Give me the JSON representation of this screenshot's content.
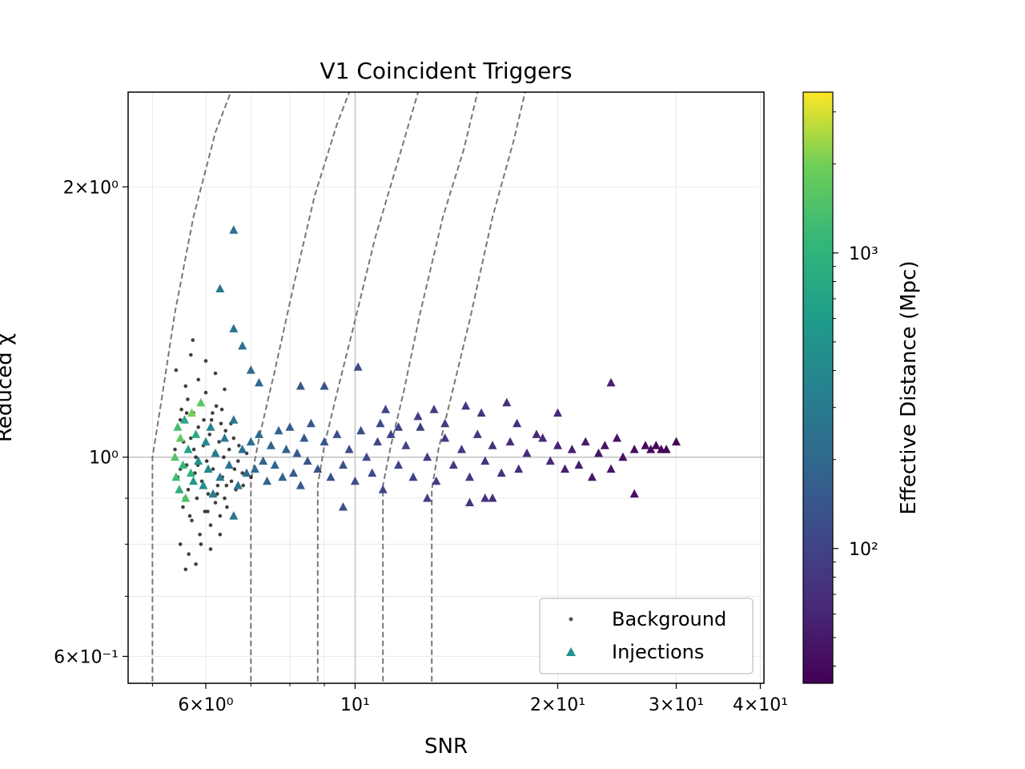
{
  "chart_data": {
    "type": "scatter",
    "title": "V1 Coincident Triggers",
    "xlabel": "SNR",
    "ylabel": "Reduced χ",
    "xscale": "log",
    "yscale": "log",
    "xlim": [
      4.6,
      40.5
    ],
    "ylim": [
      0.56,
      2.55
    ],
    "x_tick_labels": [
      {
        "value": 6,
        "label": "6×10⁰"
      },
      {
        "value": 10,
        "label": "10¹"
      },
      {
        "value": 20,
        "label": "2×10¹"
      },
      {
        "value": 30,
        "label": "3×10¹"
      },
      {
        "value": 40,
        "label": "4×10¹"
      }
    ],
    "y_tick_labels": [
      {
        "value": 0.6,
        "label": "6×10⁻¹"
      },
      {
        "value": 1.0,
        "label": "10⁰"
      },
      {
        "value": 2.0,
        "label": "2×10⁰"
      }
    ],
    "grid": true,
    "legend_position": "lower-right",
    "colorbar": {
      "label": "Effective Distance (Mpc)",
      "scale": "log",
      "colormap": "viridis",
      "range": [
        35,
        3500
      ],
      "tick_labels": [
        {
          "value": 100,
          "label": "10²"
        },
        {
          "value": 1000,
          "label": "10³"
        }
      ]
    },
    "reference_lines": {
      "x": 10,
      "y": 1.0
    },
    "threshold_curves": [
      {
        "snr_threshold": 5.0,
        "points": [
          [
            5.0,
            0.55
          ],
          [
            5.0,
            1.0
          ],
          [
            5.15,
            1.15
          ],
          [
            5.4,
            1.45
          ],
          [
            5.75,
            1.85
          ],
          [
            6.2,
            2.3
          ],
          [
            6.6,
            2.6
          ]
        ]
      },
      {
        "snr_threshold": 7.0,
        "points": [
          [
            7.0,
            0.55
          ],
          [
            7.0,
            0.94
          ],
          [
            7.2,
            1.05
          ],
          [
            7.6,
            1.25
          ],
          [
            8.1,
            1.55
          ],
          [
            8.7,
            1.95
          ],
          [
            9.4,
            2.35
          ],
          [
            9.9,
            2.6
          ]
        ]
      },
      {
        "snr_threshold": 8.8,
        "points": [
          [
            8.8,
            0.55
          ],
          [
            8.8,
            0.93
          ],
          [
            9.0,
            1.03
          ],
          [
            9.4,
            1.18
          ],
          [
            10.0,
            1.42
          ],
          [
            10.7,
            1.75
          ],
          [
            11.5,
            2.1
          ],
          [
            12.5,
            2.6
          ]
        ]
      },
      {
        "snr_threshold": 11.0,
        "points": [
          [
            11.0,
            0.55
          ],
          [
            11.0,
            0.93
          ],
          [
            11.3,
            1.03
          ],
          [
            11.8,
            1.18
          ],
          [
            12.5,
            1.45
          ],
          [
            13.5,
            1.85
          ],
          [
            14.5,
            2.2
          ],
          [
            15.3,
            2.6
          ]
        ]
      },
      {
        "snr_threshold": 13.0,
        "points": [
          [
            13.0,
            0.55
          ],
          [
            13.0,
            0.92
          ],
          [
            13.3,
            1.02
          ],
          [
            13.9,
            1.17
          ],
          [
            14.8,
            1.42
          ],
          [
            16.0,
            1.85
          ],
          [
            17.2,
            2.25
          ],
          [
            18.0,
            2.6
          ]
        ]
      }
    ],
    "series": [
      {
        "name": "Background",
        "marker": "dot",
        "color": "#000000",
        "points": [
          [
            5.4,
            1.02
          ],
          [
            5.45,
            0.95
          ],
          [
            5.5,
            1.1
          ],
          [
            5.55,
            0.88
          ],
          [
            5.6,
            1.2
          ],
          [
            5.62,
            0.98
          ],
          [
            5.65,
            0.92
          ],
          [
            5.7,
            1.05
          ],
          [
            5.72,
            0.85
          ],
          [
            5.75,
            1.12
          ],
          [
            5.78,
            0.96
          ],
          [
            5.8,
            1.0
          ],
          [
            5.82,
            0.9
          ],
          [
            5.85,
            1.08
          ],
          [
            5.88,
            0.82
          ],
          [
            5.9,
            1.15
          ],
          [
            5.92,
            0.94
          ],
          [
            5.95,
            1.03
          ],
          [
            5.98,
            0.87
          ],
          [
            6.0,
            1.18
          ],
          [
            6.02,
            0.99
          ],
          [
            6.05,
            0.91
          ],
          [
            6.08,
            1.06
          ],
          [
            6.1,
            0.84
          ],
          [
            6.12,
            1.1
          ],
          [
            6.15,
            0.97
          ],
          [
            6.18,
            1.01
          ],
          [
            6.2,
            0.89
          ],
          [
            6.22,
            1.14
          ],
          [
            6.25,
            0.93
          ],
          [
            6.28,
            1.04
          ],
          [
            6.3,
            0.86
          ],
          [
            6.32,
            1.09
          ],
          [
            6.35,
            0.95
          ],
          [
            6.38,
            1.0
          ],
          [
            6.4,
            0.9
          ],
          [
            6.42,
            1.07
          ],
          [
            6.45,
            0.88
          ],
          [
            6.5,
            1.02
          ],
          [
            6.55,
            0.94
          ],
          [
            6.6,
            1.05
          ],
          [
            6.65,
            0.92
          ],
          [
            6.7,
            0.99
          ],
          [
            6.8,
            0.96
          ],
          [
            6.9,
            1.01
          ],
          [
            7.0,
            0.95
          ],
          [
            5.42,
            1.25
          ],
          [
            5.5,
            0.8
          ],
          [
            5.6,
            0.75
          ],
          [
            5.66,
            0.78
          ],
          [
            5.7,
            1.3
          ],
          [
            5.74,
            1.35
          ],
          [
            5.8,
            0.76
          ],
          [
            5.85,
            1.22
          ],
          [
            5.9,
            0.8
          ],
          [
            6.0,
            1.28
          ],
          [
            6.1,
            0.79
          ],
          [
            6.2,
            1.24
          ],
          [
            6.3,
            0.82
          ],
          [
            6.4,
            1.19
          ],
          [
            5.45,
            1.08
          ],
          [
            5.52,
            1.13
          ],
          [
            5.58,
            0.9
          ],
          [
            5.64,
            1.16
          ],
          [
            5.68,
            0.86
          ],
          [
            5.76,
            1.02
          ],
          [
            5.84,
            0.98
          ],
          [
            5.96,
            1.1
          ],
          [
            6.04,
            0.87
          ],
          [
            6.14,
            1.12
          ],
          [
            6.24,
            0.91
          ],
          [
            6.34,
            1.13
          ],
          [
            6.44,
            0.93
          ],
          [
            6.54,
            1.09
          ],
          [
            6.62,
            0.97
          ],
          [
            6.72,
            1.03
          ],
          [
            6.82,
            0.93
          ],
          [
            5.5,
            0.97
          ],
          [
            5.56,
            1.04
          ],
          [
            5.62,
            1.12
          ]
        ]
      },
      {
        "name": "Injections",
        "marker": "triangle",
        "points": [
          [
            5.4,
            1.0,
            1500
          ],
          [
            5.42,
            0.95,
            1200
          ],
          [
            5.45,
            1.08,
            1300
          ],
          [
            5.48,
            0.92,
            900
          ],
          [
            5.5,
            1.05,
            1700
          ],
          [
            5.55,
            0.98,
            1100
          ],
          [
            5.58,
            1.1,
            800
          ],
          [
            5.6,
            0.9,
            1400
          ],
          [
            5.65,
            1.02,
            700
          ],
          [
            5.7,
            0.96,
            1000
          ],
          [
            5.72,
            1.12,
            2000
          ],
          [
            5.75,
            0.94,
            600
          ],
          [
            5.8,
            1.06,
            850
          ],
          [
            5.85,
            0.99,
            500
          ],
          [
            5.9,
            1.15,
            1600
          ],
          [
            5.95,
            0.93,
            450
          ],
          [
            6.0,
            1.04,
            400
          ],
          [
            6.05,
            0.97,
            380
          ],
          [
            6.1,
            1.08,
            350
          ],
          [
            6.15,
            0.91,
            320
          ],
          [
            6.2,
            1.01,
            300
          ],
          [
            6.3,
            0.95,
            290
          ],
          [
            6.4,
            1.05,
            280
          ],
          [
            6.5,
            0.98,
            270
          ],
          [
            6.6,
            1.1,
            260
          ],
          [
            6.7,
            0.93,
            250
          ],
          [
            6.8,
            1.02,
            240
          ],
          [
            6.9,
            0.96,
            230
          ],
          [
            7.0,
            1.04,
            220
          ],
          [
            7.1,
            0.97,
            210
          ],
          [
            7.2,
            1.06,
            200
          ],
          [
            7.3,
            0.99,
            195
          ],
          [
            7.4,
            0.94,
            190
          ],
          [
            7.5,
            1.03,
            185
          ],
          [
            7.6,
            0.98,
            180
          ],
          [
            7.7,
            1.07,
            175
          ],
          [
            7.8,
            0.95,
            170
          ],
          [
            7.9,
            1.02,
            165
          ],
          [
            8.0,
            1.08,
            160
          ],
          [
            8.1,
            0.96,
            155
          ],
          [
            8.2,
            1.01,
            150
          ],
          [
            8.3,
            0.93,
            148
          ],
          [
            8.4,
            1.05,
            145
          ],
          [
            8.5,
            0.99,
            142
          ],
          [
            8.6,
            1.09,
            140
          ],
          [
            8.8,
            0.97,
            138
          ],
          [
            9.0,
            1.04,
            135
          ],
          [
            9.2,
            0.95,
            130
          ],
          [
            9.4,
            1.06,
            128
          ],
          [
            9.6,
            0.98,
            125
          ],
          [
            9.8,
            1.02,
            122
          ],
          [
            10.0,
            0.94,
            120
          ],
          [
            10.2,
            1.07,
            118
          ],
          [
            10.4,
            1.0,
            115
          ],
          [
            10.6,
            0.96,
            112
          ],
          [
            10.8,
            1.04,
            110
          ],
          [
            11.0,
            0.92,
            108
          ],
          [
            11.3,
            1.06,
            105
          ],
          [
            11.6,
            0.98,
            102
          ],
          [
            11.9,
            1.03,
            100
          ],
          [
            12.2,
            0.95,
            97
          ],
          [
            12.5,
            1.08,
            95
          ],
          [
            12.8,
            1.0,
            92
          ],
          [
            13.2,
            0.94,
            90
          ],
          [
            13.6,
            1.05,
            88
          ],
          [
            14.0,
            0.98,
            85
          ],
          [
            14.4,
            1.02,
            82
          ],
          [
            14.8,
            0.95,
            80
          ],
          [
            15.2,
            1.06,
            78
          ],
          [
            15.6,
            0.99,
            76
          ],
          [
            16.0,
            1.03,
            74
          ],
          [
            16.5,
            0.96,
            72
          ],
          [
            17.0,
            1.04,
            70
          ],
          [
            17.5,
            0.97,
            68
          ],
          [
            18.0,
            1.01,
            66
          ],
          [
            19.0,
            1.05,
            62
          ],
          [
            19.5,
            0.99,
            60
          ],
          [
            20.0,
            1.03,
            58
          ],
          [
            20.5,
            0.97,
            56
          ],
          [
            21.0,
            1.02,
            54
          ],
          [
            21.5,
            0.98,
            52
          ],
          [
            22.0,
            1.04,
            50
          ],
          [
            22.5,
            0.95,
            49
          ],
          [
            23.0,
            1.01,
            48
          ],
          [
            23.5,
            1.03,
            47
          ],
          [
            24.0,
            0.97,
            46
          ],
          [
            24.5,
            1.05,
            45
          ],
          [
            25.0,
            1.0,
            44
          ],
          [
            26.0,
            1.02,
            42
          ],
          [
            27.0,
            1.03,
            41
          ],
          [
            27.5,
            1.02,
            40
          ],
          [
            28.0,
            1.03,
            39
          ],
          [
            28.5,
            1.02,
            38
          ],
          [
            29.0,
            1.02,
            37
          ],
          [
            30.0,
            1.04,
            36
          ],
          [
            24.0,
            1.21,
            55
          ],
          [
            20.0,
            1.12,
            62
          ],
          [
            26.0,
            0.91,
            45
          ],
          [
            16.0,
            0.9,
            70
          ],
          [
            10.1,
            1.26,
            115
          ],
          [
            9.0,
            1.2,
            130
          ],
          [
            8.3,
            1.2,
            145
          ],
          [
            7.2,
            1.21,
            190
          ],
          [
            7.0,
            1.25,
            200
          ],
          [
            6.8,
            1.33,
            230
          ],
          [
            6.6,
            1.39,
            250
          ],
          [
            6.3,
            1.54,
            280
          ],
          [
            6.6,
            1.79,
            240
          ],
          [
            6.6,
            0.86,
            260
          ],
          [
            9.6,
            0.88,
            125
          ],
          [
            12.8,
            0.9,
            92
          ],
          [
            14.8,
            0.89,
            80
          ],
          [
            15.6,
            0.9,
            76
          ],
          [
            11.1,
            1.13,
            108
          ],
          [
            12.4,
            1.11,
            95
          ],
          [
            13.1,
            1.13,
            91
          ],
          [
            14.6,
            1.14,
            80
          ],
          [
            16.8,
            1.15,
            71
          ],
          [
            17.4,
            1.09,
            68
          ],
          [
            11.6,
            1.08,
            102
          ],
          [
            10.9,
            1.09,
            110
          ],
          [
            13.6,
            1.09,
            88
          ],
          [
            15.4,
            1.12,
            77
          ],
          [
            18.6,
            1.06,
            64
          ]
        ]
      }
    ]
  }
}
